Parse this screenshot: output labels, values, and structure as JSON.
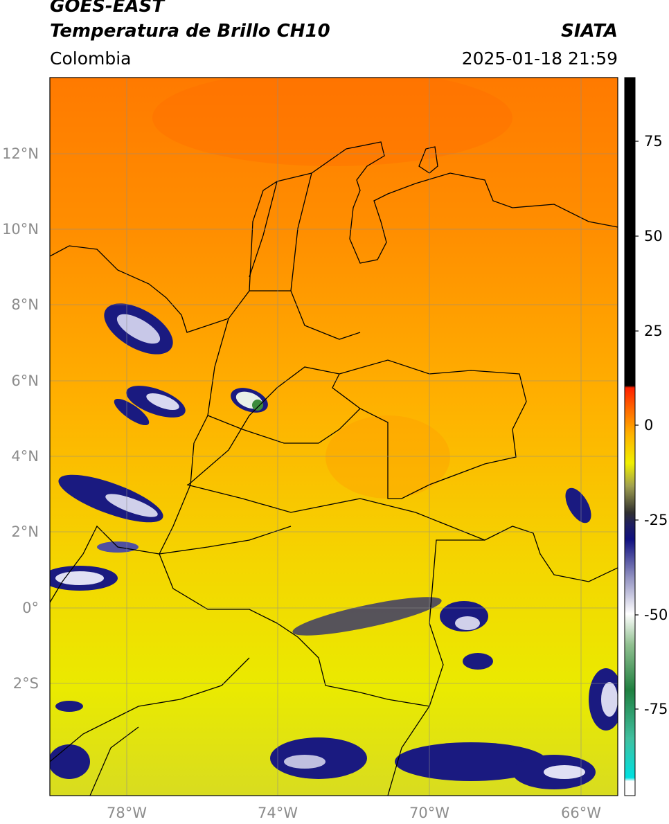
{
  "header": {
    "satellite": "GOES-EAST",
    "product": "Temperatura de Brillo CH10",
    "organization": "SIATA",
    "region": "Colombia",
    "datetime": "2025-01-18 21:59"
  },
  "map": {
    "projection": "lat-lon",
    "lon_range": [
      -80,
      -65
    ],
    "lat_range": [
      -5,
      14
    ],
    "latitude_ticks": [
      "12°N",
      "10°N",
      "8°N",
      "6°N",
      "4°N",
      "2°N",
      "0°",
      "2°S"
    ],
    "longitude_ticks": [
      "78°W",
      "74°W",
      "70°W",
      "66°W"
    ],
    "gridlines": true
  },
  "colorbar": {
    "range": [
      -100,
      90
    ],
    "tick_labels": [
      "75",
      "50",
      "25",
      "0",
      "-25",
      "-50",
      "-75"
    ],
    "stops": [
      {
        "value": -100,
        "color": "#ffffff"
      },
      {
        "value": -96,
        "color": "#ffffff"
      },
      {
        "value": -95,
        "color": "#00e0e0"
      },
      {
        "value": -85,
        "color": "#40c0a0"
      },
      {
        "value": -72,
        "color": "#208040"
      },
      {
        "value": -60,
        "color": "#90c090"
      },
      {
        "value": -52,
        "color": "#ffffff"
      },
      {
        "value": -42,
        "color": "#9090c0"
      },
      {
        "value": -32,
        "color": "#101080"
      },
      {
        "value": -28,
        "color": "#202060"
      },
      {
        "value": -25,
        "color": "#303030"
      },
      {
        "value": -18,
        "color": "#a0a050"
      },
      {
        "value": -12,
        "color": "#f0f000"
      },
      {
        "value": -4,
        "color": "#ffb000"
      },
      {
        "value": 3,
        "color": "#ff6000"
      },
      {
        "value": 8,
        "color": "#ff2000"
      },
      {
        "value": 8.5,
        "color": "#000000"
      },
      {
        "value": 90,
        "color": "#000000"
      }
    ]
  }
}
